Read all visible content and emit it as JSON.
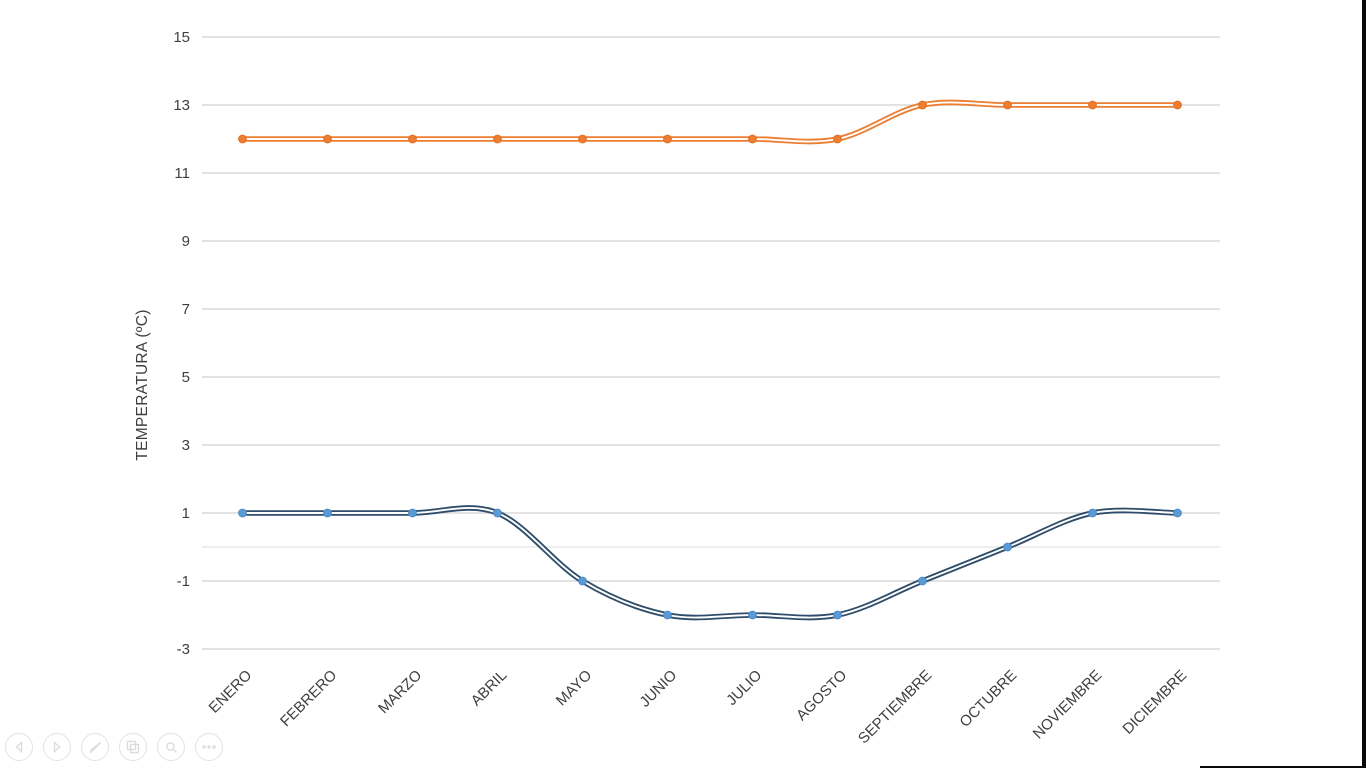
{
  "slide": {
    "background": "#FFFFFF"
  },
  "chart_data": {
    "type": "line",
    "smooth": true,
    "line_style": "double",
    "title": "",
    "xlabel": "",
    "ylabel": "TEMPERATURA (ºC)",
    "categories": [
      "ENERO",
      "FEBRERO",
      "MARZO",
      "ABRIL",
      "MAYO",
      "JUNIO",
      "JULIO",
      "AGOSTO",
      "SEPTIEMBRE",
      "OCTUBRE",
      "NOVIEMBRE",
      "DICIEMBRE"
    ],
    "series": [
      {
        "name": "blue-series",
        "values": [
          1,
          1,
          1,
          1,
          -1,
          -2,
          -2,
          -2,
          -1,
          0,
          1,
          1
        ],
        "line_color": "#2E4D6A",
        "marker_color": "#5B9BD5",
        "marker_edge_color": "#4E8AC8"
      },
      {
        "name": "orange-series",
        "values": [
          12,
          12,
          12,
          12,
          12,
          12,
          12,
          12,
          13,
          13,
          13,
          13
        ],
        "line_color": "#ED7D31",
        "marker_color": "#ED7D31",
        "marker_edge_color": "#E06F22"
      }
    ],
    "yticks": [
      15,
      13,
      11,
      9,
      7,
      5,
      3,
      1,
      -1,
      -3
    ],
    "ylim": [
      -4,
      16
    ],
    "grid": true,
    "legend": false,
    "axis_line_value": 0,
    "grid_color": "#D2D2D2",
    "zero_axis_color": "#E4E4E4",
    "tick_label_color": "#3F3F3F"
  },
  "controls": {
    "items": [
      {
        "name": "previous-slide",
        "icon": "chevron-left-icon"
      },
      {
        "name": "next-slide",
        "icon": "chevron-right-icon"
      },
      {
        "name": "pen",
        "icon": "pen-icon"
      },
      {
        "name": "see-all-slides",
        "icon": "slides-grid-icon"
      },
      {
        "name": "zoom",
        "icon": "magnifier-icon"
      },
      {
        "name": "more-options",
        "icon": "ellipsis-icon"
      }
    ]
  }
}
